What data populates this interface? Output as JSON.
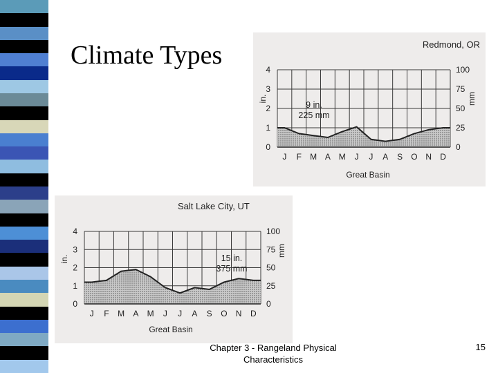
{
  "slide": {
    "title": "Climate Types",
    "footer": "Chapter 3 - Rangeland Physical Characteristics",
    "page_number": "15"
  },
  "stripe_colors": [
    "#5b9bb8",
    "#000000",
    "#5a8fc6",
    "#000000",
    "#4f7fd2",
    "#0a2a8a",
    "#9ec8e4",
    "#6b8a97",
    "#000000",
    "#d8d7b8",
    "#4a7fd0",
    "#3b55b4",
    "#8fbde0",
    "#000000",
    "#2c3f8a",
    "#8aa4b8",
    "#000000",
    "#4d8fd6",
    "#1b2f7a",
    "#000000",
    "#aac6e8",
    "#4a8bc0",
    "#d4d6b4",
    "#000000",
    "#3c6fcf",
    "#7fa9c3",
    "#000000",
    "#a2c8ec"
  ],
  "chart_data": [
    {
      "type": "area",
      "title": "Redmond, OR",
      "xlabel": "Great Basin",
      "ylabel": "in.",
      "y2label": "mm",
      "categories": [
        "J",
        "F",
        "M",
        "A",
        "M",
        "J",
        "J",
        "A",
        "S",
        "O",
        "N",
        "D"
      ],
      "values": [
        1.0,
        0.7,
        0.6,
        0.5,
        0.8,
        1.05,
        0.4,
        0.3,
        0.4,
        0.7,
        0.9,
        1.0
      ],
      "ylim": [
        0,
        4
      ],
      "yticks": [
        "0",
        "1",
        "2",
        "3",
        "4"
      ],
      "y2ticks": [
        "0",
        "25",
        "50",
        "75",
        "100"
      ],
      "annotation": [
        "9 in.",
        "225 mm"
      ],
      "grid": true,
      "fill": "stippled gray"
    },
    {
      "type": "area",
      "title": "Salt Lake City, UT",
      "xlabel": "Great Basin",
      "ylabel": "in.",
      "y2label": "mm",
      "categories": [
        "J",
        "F",
        "M",
        "A",
        "M",
        "J",
        "J",
        "A",
        "S",
        "O",
        "N",
        "D"
      ],
      "values": [
        1.2,
        1.3,
        1.8,
        1.9,
        1.5,
        0.9,
        0.6,
        0.9,
        0.8,
        1.2,
        1.4,
        1.3
      ],
      "ylim": [
        0,
        4
      ],
      "yticks": [
        "0",
        "1",
        "2",
        "3",
        "4"
      ],
      "y2ticks": [
        "0",
        "25",
        "50",
        "75",
        "100"
      ],
      "annotation": [
        "15 in.",
        "375 mm"
      ],
      "grid": true,
      "fill": "stippled gray"
    }
  ]
}
